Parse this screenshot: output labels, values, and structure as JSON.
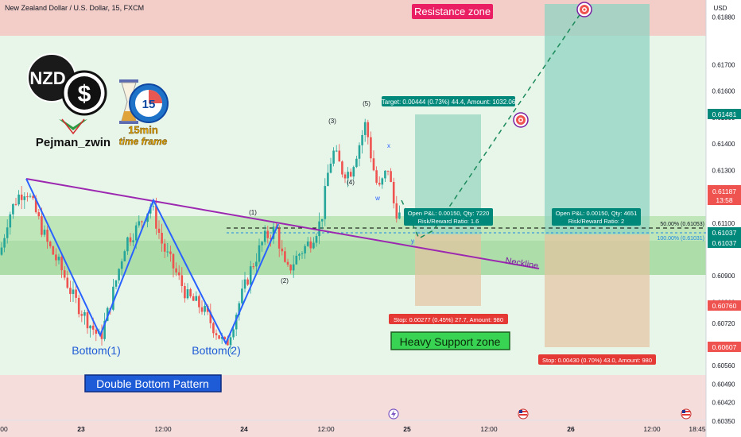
{
  "header": {
    "symbol_title": "New Zealand Dollar / U.S. Dollar, 15, FXCM",
    "currency": "USD"
  },
  "branding": {
    "author": "Pejman_zwin",
    "timeframe_line1": "15min",
    "timeframe_line2": "time frame",
    "clock_number": "15",
    "coin_text": "NZD",
    "dollar_glyph": "$"
  },
  "zones": {
    "resistance": "Resistance zone",
    "support": "Heavy Support zone",
    "bottom1": "Bottom(1)",
    "bottom2": "Bottom(2)",
    "pattern": "Double Bottom Pattern",
    "neckline": "Neckline"
  },
  "trade_boxes": {
    "target": "Target: 0.00444 (0.73%) 44.4, Amount: 1032.06",
    "pos1_line1": "Open P&L: 0.00150, Qty: 7220",
    "pos1_line2": "Risk/Reward Ratio: 1.6",
    "pos2_line1": "Open P&L: 0.00150, Qty: 4651",
    "pos2_line2": "Risk/Reward Ratio: 2",
    "stop1": "Stop: 0.00277 (0.45%) 27.7, Amount: 980",
    "stop2": "Stop: 0.00430 (0.70%) 43.0, Amount: 980"
  },
  "fib": {
    "level50": "50.00% (0.61053)",
    "level100": "100.00% (0.61031)"
  },
  "wave_labels": {
    "w1": "(1)",
    "w2": "(2)",
    "w3": "(3)",
    "w4": "(4)",
    "w5": "(5)",
    "x": "x",
    "w": "w",
    "y": "y"
  },
  "price_badges": {
    "p1": "0.61481",
    "p2_price": "0.61187",
    "p2_timer": "13:58",
    "p3": "0.61037",
    "p4": "0.61037",
    "p5": "0.60760",
    "p6": "0.60607"
  },
  "chart_data": {
    "type": "candlestick",
    "title": "New Zealand Dollar / U.S. Dollar, 15, FXCM",
    "y_axis": {
      "ticks": [
        "0.61880",
        "0.61700",
        "0.61600",
        "0.61500",
        "0.61400",
        "0.61300",
        "0.61200",
        "0.61100",
        "0.61037",
        "0.60900",
        "0.60800",
        "0.60720",
        "0.60640",
        "0.60560",
        "0.60490",
        "0.60420",
        "0.60350"
      ],
      "range": [
        0.6035,
        0.6193
      ]
    },
    "x_axis": {
      "ticks": [
        "00",
        "23",
        "12:00",
        "24",
        "12:00",
        "25",
        "12:00",
        "26",
        "12:00",
        "18:45"
      ]
    },
    "price_path": [
      [
        0,
        0.6098
      ],
      [
        10,
        0.6112
      ],
      [
        22,
        0.612
      ],
      [
        33,
        0.6123
      ],
      [
        45,
        0.6114
      ],
      [
        60,
        0.6102
      ],
      [
        75,
        0.6094
      ],
      [
        92,
        0.6082
      ],
      [
        108,
        0.6074
      ],
      [
        126,
        0.6066
      ],
      [
        140,
        0.6081
      ],
      [
        158,
        0.6103
      ],
      [
        172,
        0.6108
      ],
      [
        190,
        0.6117
      ],
      [
        205,
        0.6101
      ],
      [
        220,
        0.6092
      ],
      [
        236,
        0.6082
      ],
      [
        254,
        0.6078
      ],
      [
        268,
        0.6071
      ],
      [
        284,
        0.6063
      ],
      [
        300,
        0.6079
      ],
      [
        316,
        0.6093
      ],
      [
        332,
        0.6104
      ],
      [
        347,
        0.6108
      ],
      [
        360,
        0.6091
      ],
      [
        375,
        0.6098
      ],
      [
        390,
        0.6103
      ],
      [
        404,
        0.6111
      ],
      [
        414,
        0.6132
      ],
      [
        420,
        0.6137
      ],
      [
        430,
        0.613
      ],
      [
        440,
        0.6129
      ],
      [
        452,
        0.614
      ],
      [
        460,
        0.6148
      ],
      [
        468,
        0.6133
      ],
      [
        476,
        0.6122
      ],
      [
        488,
        0.6131
      ],
      [
        496,
        0.6116
      ],
      [
        504,
        0.6112
      ]
    ],
    "levels": {
      "neckline_start": [
        33,
        0.6123
      ],
      "neckline_end": [
        678,
        0.6091
      ],
      "resistance_zone": [
        0.6178,
        0.6193
      ],
      "support_zone": [
        0.6088,
        0.6109
      ],
      "entry": 0.61037,
      "fib_50": 0.61053,
      "fib_100": 0.61031
    },
    "colors": {
      "up": "#26a69a",
      "down": "#ef5350",
      "neckline": "#9c27b0",
      "pattern_line": "#2962ff"
    }
  }
}
